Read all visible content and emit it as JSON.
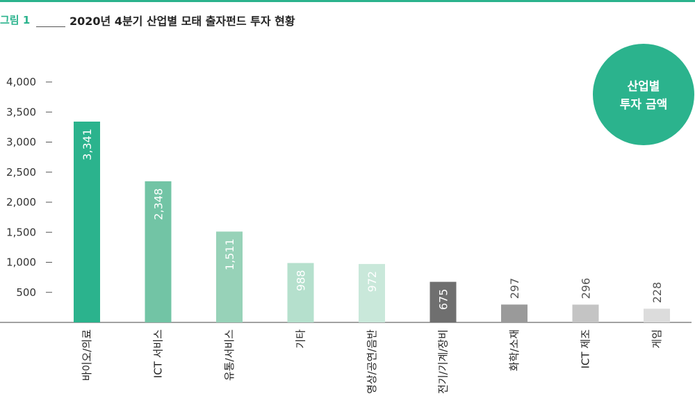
{
  "header": {
    "figure_label": "그림 1",
    "title": "2020년 4분기 산업별 모태 출자펀드 투자 현황"
  },
  "badge": {
    "line1": "산업별",
    "line2": "투자 금액",
    "color": "#2bb38d"
  },
  "chart_data": {
    "type": "bar",
    "title": "2020년 4분기 산업별 모태 출자펀드 투자 현황",
    "categories": [
      "바이오/의료",
      "ICT 서비스",
      "유통/서비스",
      "기타",
      "영상/공연/음반",
      "전기/기계/장비",
      "화학/소재",
      "ICT 제조",
      "게임"
    ],
    "values": [
      3341,
      2348,
      1511,
      988,
      972,
      675,
      297,
      296,
      228
    ],
    "value_labels": [
      "3,341",
      "2,348",
      "1,511",
      "988",
      "972",
      "675",
      "297",
      "296",
      "228"
    ],
    "bar_colors": [
      "#2bb38d",
      "#72c4a5",
      "#97d2b8",
      "#b5e0cd",
      "#c9e8da",
      "#6f6f6f",
      "#9a9a9a",
      "#c4c4c4",
      "#dcdcdc"
    ],
    "label_colors": [
      "#ffffff",
      "#ffffff",
      "#ffffff",
      "#ffffff",
      "#ffffff",
      "#ffffff",
      "#555555",
      "#555555",
      "#555555"
    ],
    "yticks": [
      500,
      1000,
      1500,
      2000,
      2500,
      3000,
      3500,
      4000
    ],
    "ytick_labels": [
      "500",
      "1,000",
      "1,500",
      "2,000",
      "2,500",
      "3,000",
      "3,500",
      "4,000"
    ],
    "ylim": [
      0,
      4000
    ],
    "xlabel": "",
    "ylabel": "",
    "grid": false,
    "legend": "none"
  }
}
